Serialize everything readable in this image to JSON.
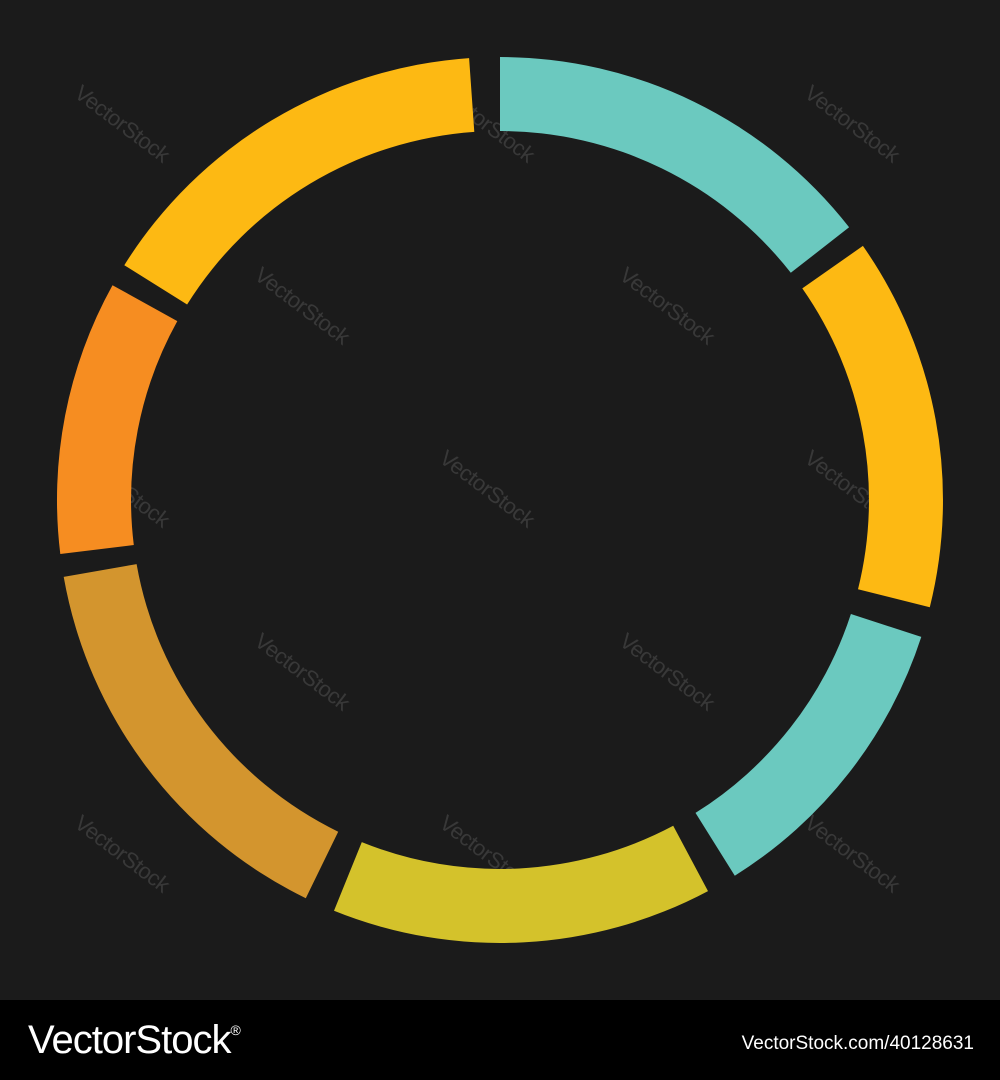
{
  "ring": {
    "segments": [
      {
        "name": "segment-top",
        "color": "#6bc9bf"
      },
      {
        "name": "segment-upper-right",
        "color": "#fdb913"
      },
      {
        "name": "segment-right",
        "color": "#6bc9bf"
      },
      {
        "name": "segment-bottom-right",
        "color": "#d4c22b"
      },
      {
        "name": "segment-bottom-left",
        "color": "#d3952e"
      },
      {
        "name": "segment-left",
        "color": "#f68d21"
      },
      {
        "name": "segment-upper-left",
        "color": "#fdb913"
      }
    ]
  },
  "watermark": {
    "text": "VectorStock"
  },
  "footer": {
    "logo_text": "VectorStock",
    "logo_reg": "®",
    "image_id": "VectorStock.com/40128631"
  },
  "colors": {
    "background": "#1b1b1b",
    "footer": "#000000"
  }
}
